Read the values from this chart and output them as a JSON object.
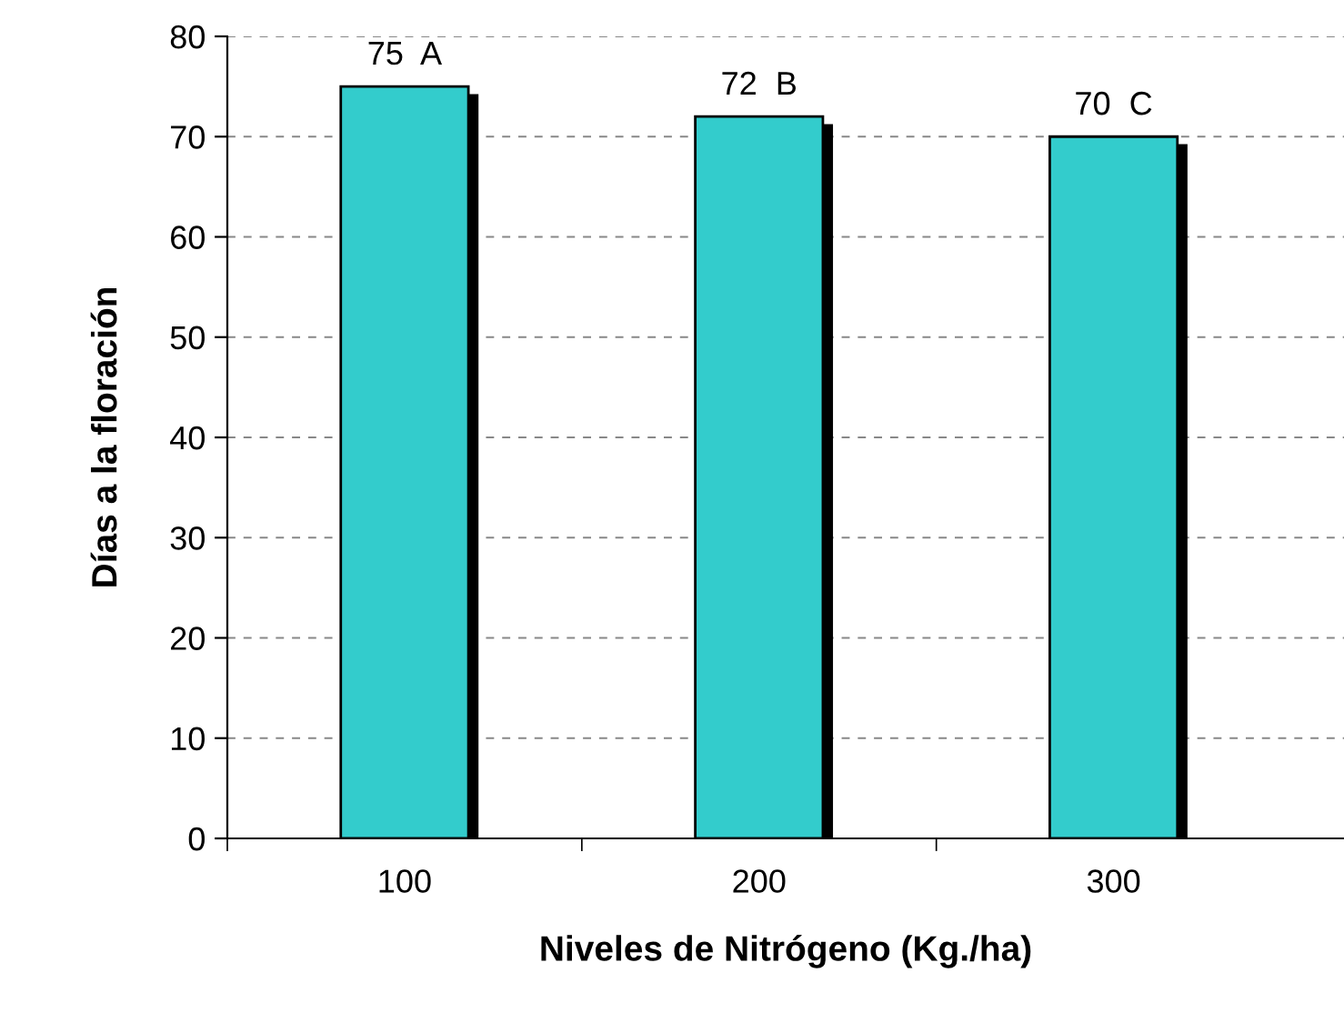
{
  "chart_data": {
    "type": "bar",
    "xlabel": "Niveles de Nitrógeno (Kg./ha)",
    "ylabel": "Días a la floración",
    "categories": [
      "100",
      "200",
      "300"
    ],
    "values": [
      75,
      72,
      70
    ],
    "value_labels": [
      "75  A",
      "72  B",
      "70  C"
    ],
    "color": "#33cccc",
    "ylim": [
      0,
      80
    ],
    "yticks": [
      0,
      10,
      20,
      30,
      40,
      50,
      60,
      70,
      80
    ],
    "grid": "y"
  }
}
